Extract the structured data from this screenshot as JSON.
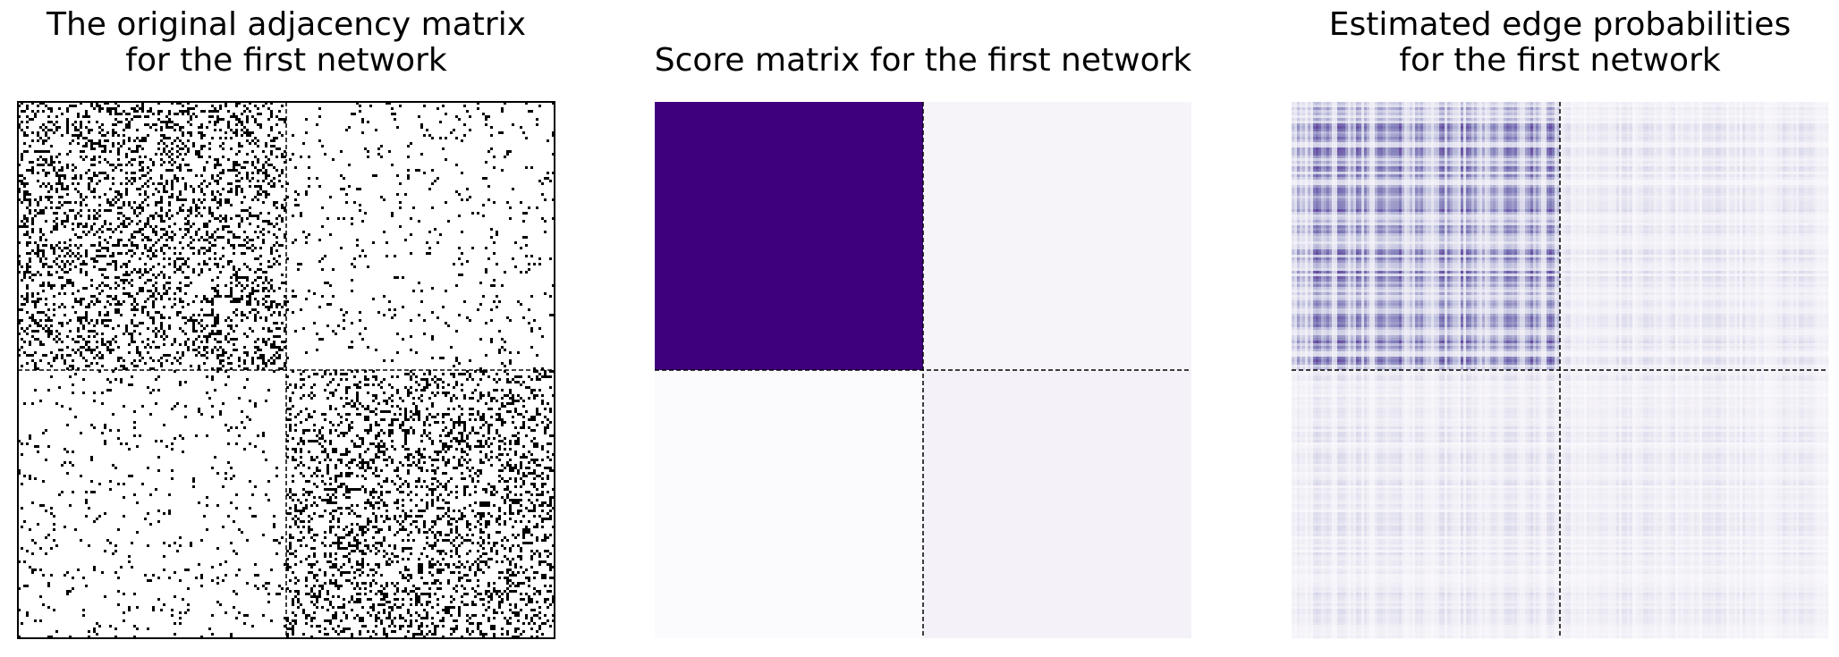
{
  "charts": [
    {
      "id": "adjacency",
      "title_lines": [
        "The original adjacency matrix",
        "for the first network"
      ],
      "type": "heatmap",
      "colormap": "binary",
      "block_size": 100,
      "n_nodes": 200,
      "block_edge_density": [
        [
          0.25,
          0.05
        ],
        [
          0.05,
          0.25
        ]
      ],
      "block_boundary": 100
    },
    {
      "id": "score",
      "title_lines": [
        "Score matrix for the first network"
      ],
      "type": "heatmap",
      "colormap": "Purples",
      "block_values": [
        [
          1.0,
          0.06
        ],
        [
          0.01,
          0.08
        ]
      ],
      "block_boundary": 0.5
    },
    {
      "id": "probabilities",
      "title_lines": [
        "Estimated edge probabilities",
        "for the first network"
      ],
      "type": "heatmap",
      "colormap": "Purples",
      "n_nodes": 200,
      "block_mean": [
        [
          0.35,
          0.12
        ],
        [
          0.12,
          0.1
        ]
      ],
      "block_boundary": 100
    }
  ],
  "colors": {
    "purple_dark": "#3f007d",
    "black": "#000000",
    "white": "#ffffff"
  }
}
